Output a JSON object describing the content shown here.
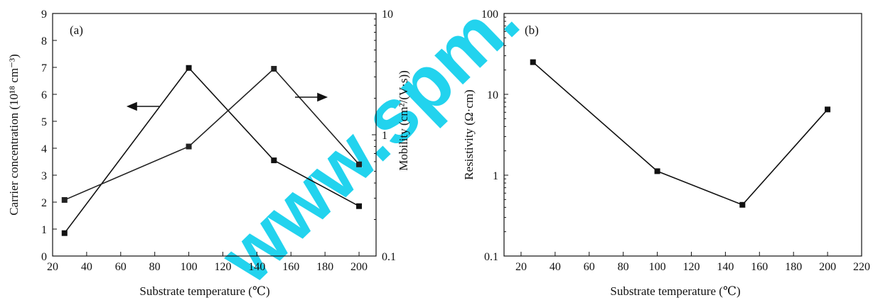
{
  "watermark": "www.spm.",
  "chart_data": [
    {
      "type": "line",
      "panel_label": "(a)",
      "xlabel": "Substrate temperature (℃)",
      "ylabel_left": "Carrier concentration (10¹⁸ cm⁻³)",
      "ylabel_right": "Mobility (cm²/(V·s))",
      "xlim": [
        20,
        210
      ],
      "xticks": [
        20,
        40,
        60,
        80,
        100,
        120,
        140,
        160,
        180,
        200
      ],
      "ylim_left": [
        0,
        9
      ],
      "yticks_left": [
        0,
        1,
        2,
        3,
        4,
        5,
        6,
        7,
        8,
        9
      ],
      "ylim_right": [
        0.1,
        10
      ],
      "yscale_right": "log",
      "yticks_right": [
        0.1,
        1,
        10
      ],
      "series": [
        {
          "axis": "left",
          "marker": "square-filled",
          "color": "#111111",
          "x": [
            27,
            100,
            150,
            200
          ],
          "y": [
            0.85,
            6.98,
            3.55,
            1.85
          ]
        },
        {
          "axis": "right",
          "marker": "square-filled",
          "color": "#222222",
          "x": [
            27,
            100,
            150,
            200
          ],
          "y": [
            0.29,
            0.8,
            3.5,
            0.57
          ]
        }
      ],
      "annotations": [
        "left-arrow near left series (points to left axis)",
        "right-arrow near right series (points to right axis)"
      ],
      "grid": false
    },
    {
      "type": "line",
      "panel_label": "(b)",
      "xlabel": "Substrate temperature (℃)",
      "ylabel": "Resistivity (Ω·cm)",
      "xlim": [
        10,
        220
      ],
      "xticks": [
        20,
        40,
        60,
        80,
        100,
        120,
        140,
        160,
        180,
        200,
        220
      ],
      "ylim": [
        0.1,
        100
      ],
      "yscale": "log",
      "yticks": [
        0.1,
        1,
        10,
        100
      ],
      "series": [
        {
          "marker": "square-filled",
          "color": "#111111",
          "x": [
            27,
            100,
            150,
            200
          ],
          "y": [
            25,
            1.12,
            0.43,
            6.5
          ]
        }
      ],
      "grid": false
    }
  ]
}
